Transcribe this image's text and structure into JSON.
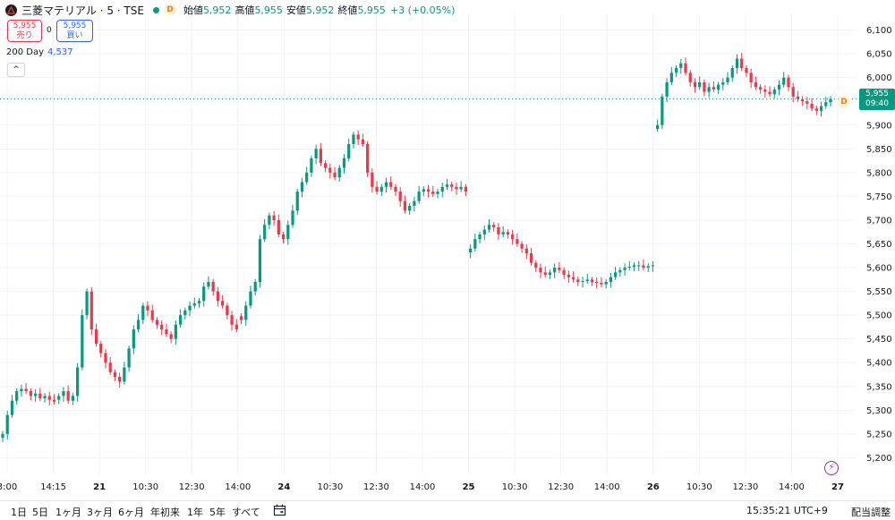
{
  "header": {
    "symbol": "三菱マテリアル · 5 · TSE",
    "badge": "D",
    "open_label": "始値",
    "open_value": "5,952",
    "high_label": "高値",
    "high_value": "5,955",
    "low_label": "安値",
    "low_value": "5,952",
    "close_label": "終値",
    "close_value": "5,955",
    "change": "+3 (+0.05%)"
  },
  "trade": {
    "sell_price": "5,955",
    "sell_label": "売り",
    "spread": "0",
    "buy_price": "5,955",
    "buy_label": "買い"
  },
  "indicator": {
    "name": "200 Day",
    "value": "4,537"
  },
  "collapse_symbol": "^",
  "last_price": {
    "price": "5,955",
    "countdown": "09:40",
    "badge": "D"
  },
  "colors": {
    "up": "#089981",
    "down": "#f23645",
    "ma": "#2962ff",
    "grid": "#f0f3fa"
  },
  "icons": {
    "flash": "lightning-icon",
    "calendar": "calendar-icon",
    "logo": "company-logo-icon"
  },
  "bottom": {
    "ranges": [
      "1日",
      "5日",
      "1ヶ月",
      "3ヶ月",
      "6ヶ月",
      "年初来",
      "1年",
      "5年",
      "すべて"
    ],
    "clock": "15:35:21 UTC+9",
    "adjust": "配当調整"
  },
  "chart_data": {
    "type": "candlestick",
    "interval": "5 minutes",
    "y_ticks": [
      5200,
      5250,
      5300,
      5350,
      5400,
      5450,
      5500,
      5550,
      5600,
      5650,
      5700,
      5750,
      5800,
      5850,
      5900,
      5950,
      6000,
      6050,
      6100
    ],
    "y_tick_labels": [
      "5,200",
      "5,250",
      "5,300",
      "5,350",
      "5,400",
      "5,450",
      "5,500",
      "5,550",
      "5,600",
      "5,650",
      "5,700",
      "5,750",
      "5,800",
      "5,850",
      "5,900",
      "5,950",
      "6,000",
      "6,050",
      "6,100"
    ],
    "ylim": [
      5165,
      6135
    ],
    "x_tick_labels": [
      {
        "label": "3:00",
        "bold": false
      },
      {
        "label": "14:15",
        "bold": false
      },
      {
        "label": "21",
        "bold": true
      },
      {
        "label": "10:30",
        "bold": false
      },
      {
        "label": "12:30",
        "bold": false
      },
      {
        "label": "14:00",
        "bold": false
      },
      {
        "label": "24",
        "bold": true
      },
      {
        "label": "10:30",
        "bold": false
      },
      {
        "label": "12:30",
        "bold": false
      },
      {
        "label": "14:00",
        "bold": false
      },
      {
        "label": "25",
        "bold": true
      },
      {
        "label": "10:30",
        "bold": false
      },
      {
        "label": "12:30",
        "bold": false
      },
      {
        "label": "14:00",
        "bold": false
      },
      {
        "label": "26",
        "bold": true
      },
      {
        "label": "10:30",
        "bold": false
      },
      {
        "label": "12:30",
        "bold": false
      },
      {
        "label": "14:00",
        "bold": false
      },
      {
        "label": "27",
        "bold": true
      }
    ],
    "last_price": 5955,
    "close_path": [
      5250,
      5290,
      5320,
      5340,
      5345,
      5340,
      5330,
      5335,
      5325,
      5330,
      5322,
      5318,
      5330,
      5340,
      5320,
      5330,
      5390,
      5500,
      5550,
      5470,
      5440,
      5420,
      5400,
      5380,
      5370,
      5360,
      5390,
      5430,
      5470,
      5490,
      5520,
      5510,
      5490,
      5480,
      5470,
      5460,
      5450,
      5480,
      5500,
      5510,
      5520,
      5525,
      5530,
      5560,
      5570,
      5550,
      5530,
      5520,
      5500,
      5480,
      5470,
      5490,
      5520,
      5550,
      5570,
      5660,
      5690,
      5710,
      5700,
      5670,
      5660,
      5690,
      5720,
      5760,
      5780,
      5800,
      5830,
      5850,
      5820,
      5810,
      5800,
      5790,
      5810,
      5830,
      5860,
      5880,
      5870,
      5860,
      5800,
      5770,
      5760,
      5770,
      5780,
      5770,
      5760,
      5740,
      5720,
      5730,
      5740,
      5760,
      5765,
      5760,
      5755,
      5760,
      5770,
      5775,
      5770,
      5765,
      5770,
      5760,
      5640,
      5660,
      5670,
      5680,
      5690,
      5685,
      5670,
      5675,
      5670,
      5660,
      5650,
      5640,
      5630,
      5610,
      5600,
      5590,
      5585,
      5590,
      5600,
      5595,
      5585,
      5580,
      5575,
      5570,
      5572,
      5575,
      5570,
      5568,
      5565,
      5570,
      5580,
      5590,
      5595,
      5600,
      5602,
      5605,
      5605,
      5600,
      5603,
      5605,
      5900,
      5960,
      5990,
      6010,
      6020,
      6030,
      6010,
      5990,
      5980,
      5990,
      5970,
      5980,
      5975,
      5985,
      5990,
      6000,
      6020,
      6040,
      6020,
      6010,
      5990,
      5980,
      5975,
      5970,
      5965,
      5975,
      5985,
      6000,
      5980,
      5960,
      5955,
      5950,
      5945,
      5935,
      5930,
      5940,
      5948,
      5955
    ],
    "day_segments": [
      {
        "start": 0,
        "count": 12
      },
      {
        "start": 12,
        "count": 39
      },
      {
        "start": 51,
        "count": 49
      },
      {
        "start": 100,
        "count": 40
      },
      {
        "start": 140,
        "count": 48
      }
    ]
  }
}
